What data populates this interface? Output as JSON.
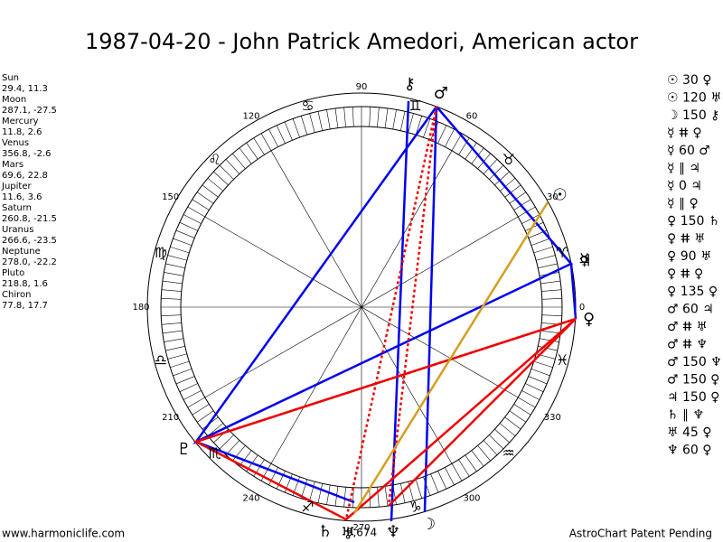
{
  "title": "1987-04-20 - John Patrick Amedori, American actor",
  "planets": [
    {
      "name": "Sun",
      "glyph": "☉",
      "position": "29.4, 11.3"
    },
    {
      "name": "Moon",
      "glyph": "☽",
      "position": "287.1, -27.5"
    },
    {
      "name": "Mercury",
      "glyph": "☿",
      "position": "11.8, 2.6"
    },
    {
      "name": "Venus",
      "glyph": "♀",
      "position": "356.8, -2.6"
    },
    {
      "name": "Mars",
      "glyph": "♂",
      "position": "69.6, 22.8"
    },
    {
      "name": "Jupiter",
      "glyph": "♃",
      "position": "11.6, 3.6"
    },
    {
      "name": "Saturn",
      "glyph": "♄",
      "position": "260.8, -21.5"
    },
    {
      "name": "Uranus",
      "glyph": "♅",
      "position": "266.6, -23.5"
    },
    {
      "name": "Neptune",
      "glyph": "♆",
      "position": "278.0, -22.2"
    },
    {
      "name": "Pluto",
      "glyph": "♇",
      "position": "218.8, 1.6"
    },
    {
      "name": "Chiron",
      "glyph": "⚷",
      "position": "77.8, 17.7"
    }
  ],
  "zodiac": [
    "♈",
    "♉",
    "♊",
    "♋",
    "♌",
    "♍",
    "♎",
    "♏",
    "♐",
    "♑",
    "♒",
    "♓"
  ],
  "degree_labels": [
    0,
    30,
    60,
    90,
    120,
    150,
    180,
    210,
    240,
    270,
    300,
    330
  ],
  "extra_label": "9,674",
  "aspects": [
    "☉ 30 ♀",
    "☉ 120 ♅",
    "☽ 150 ⚷",
    "☿ ⵌ ♀",
    "☿ 60 ♂",
    "☿ ∥ ♃",
    "☿ 0 ♃",
    "☿ ∥ ♀",
    "♀ 150 ♄",
    "♀ ⵌ ♅",
    "♀ 90 ♅",
    "♀ ⵌ ♀",
    "♀ 135 ♀",
    "♂ 60 ♃",
    "♂ ⵌ ♅",
    "♂ ⵌ ♆",
    "♂ 150 ♆",
    "♂ 150 ♀",
    "♃ 150 ♀",
    "♄ ∥ ♆",
    "♅ 45 ♀",
    "♆ 60 ♀"
  ],
  "footer_left": "www.harmoniclife.com",
  "footer_right": "AstroChart Patent Pending"
}
